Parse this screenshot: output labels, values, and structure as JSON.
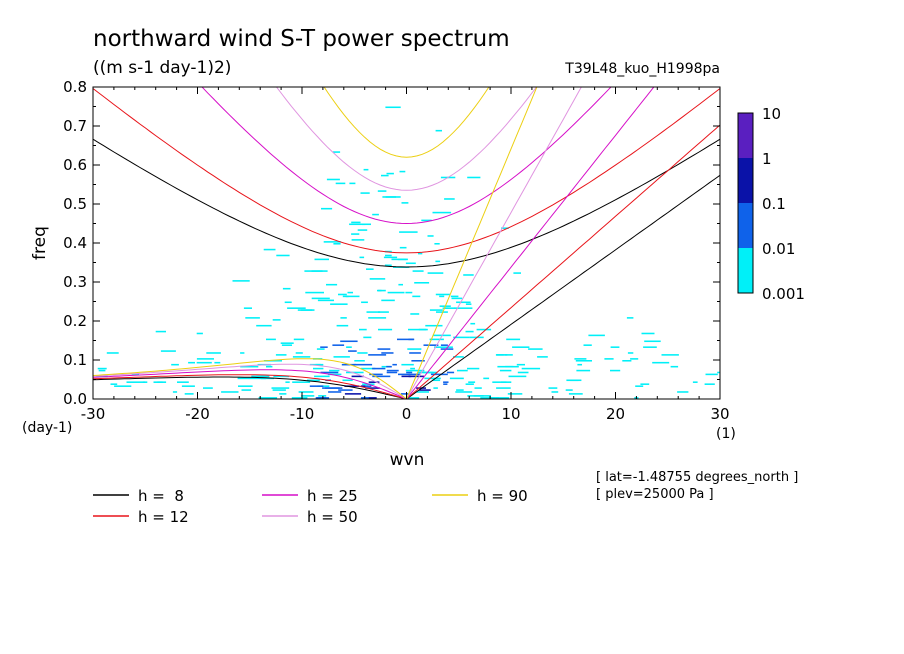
{
  "chart_data": {
    "type": "heatmap",
    "title": "northward wind S-T power spectrum",
    "units": "((m s-1 day-1)2)",
    "run_label": "T39L48_kuo_H1998pa",
    "xlabel": "wvn",
    "ylabel": "freq",
    "x_unit": "(1)",
    "y_unit": "(day-1)",
    "xlim": [
      -30,
      30
    ],
    "ylim": [
      0,
      0.8
    ],
    "x_ticks": [
      -30,
      -20,
      -10,
      0,
      10,
      20,
      30
    ],
    "x_tick_labels": [
      "-30",
      "-20",
      "-10",
      "0",
      "10",
      "20",
      "30"
    ],
    "y_ticks": [
      0,
      0.1,
      0.2,
      0.3,
      0.4,
      0.5,
      0.6,
      0.7,
      0.8
    ],
    "y_tick_labels": [
      "0.0",
      "0.1",
      "0.2",
      "0.3",
      "0.4",
      "0.5",
      "0.6",
      "0.7",
      "0.8"
    ],
    "colorbar": {
      "levels": [
        "10",
        "1",
        "0.1",
        "0.01",
        "0.001"
      ],
      "colors": [
        "#5a1fc0",
        "#0a12a8",
        "#0f62ea",
        "#00f0f8"
      ]
    },
    "dispersion_curves": [
      {
        "label": "h =  8",
        "equivalent_depth": 8,
        "color": "#000000"
      },
      {
        "label": "h = 12",
        "equivalent_depth": 12,
        "color": "#e8141a"
      },
      {
        "label": "h = 25",
        "equivalent_depth": 25,
        "color": "#d60fc8"
      },
      {
        "label": "h = 50",
        "equivalent_depth": 50,
        "color": "#e095e0"
      },
      {
        "label": "h = 90",
        "equivalent_depth": 90,
        "color": "#eccf12"
      }
    ],
    "annotations": [
      "[ lat=-1.48755 degrees_north ]",
      "[ plev=25000 Pa ]"
    ]
  }
}
